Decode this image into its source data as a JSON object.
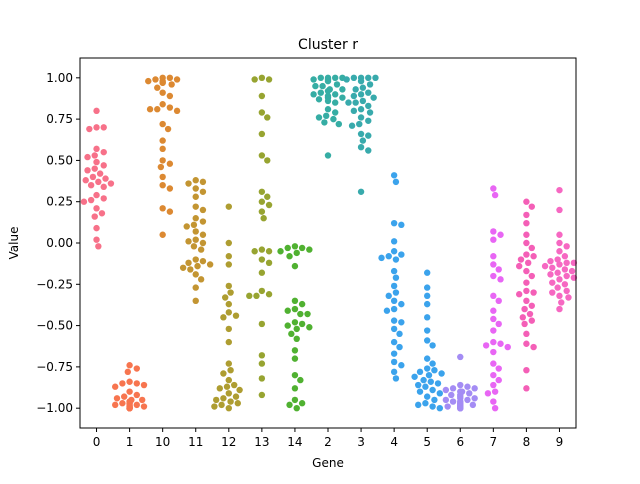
{
  "chart_data": {
    "type": "scatter",
    "subtype": "swarm",
    "title": "Cluster r",
    "xlabel": "Gene",
    "ylabel": "Value",
    "ylim": [
      -1.12,
      1.12
    ],
    "yticks": [
      -1.0,
      -0.75,
      -0.5,
      -0.25,
      0.0,
      0.25,
      0.5,
      0.75,
      1.0
    ],
    "yticklabels": [
      "−1.00",
      "−0.75",
      "−0.50",
      "−0.25",
      "0.00",
      "0.25",
      "0.50",
      "0.75",
      "1.00"
    ],
    "categories": [
      "0",
      "1",
      "10",
      "11",
      "12",
      "13",
      "14",
      "2",
      "3",
      "4",
      "5",
      "6",
      "7",
      "8",
      "9"
    ],
    "colors": [
      "#f77189",
      "#f7754f",
      "#dc8932",
      "#c39532",
      "#ae9d31",
      "#97a431",
      "#50b131",
      "#36ada4",
      "#38aaac",
      "#3ba3ec",
      "#3ba3ec",
      "#a48cf4",
      "#e866f4",
      "#f45fb7",
      "#f668c2"
    ],
    "series": [
      {
        "category": "0",
        "values": [
          0.8,
          0.7,
          0.7,
          0.69,
          0.57,
          0.55,
          0.53,
          0.52,
          0.49,
          0.47,
          0.45,
          0.44,
          0.42,
          0.4,
          0.39,
          0.38,
          0.37,
          0.36,
          0.35,
          0.34,
          0.29,
          0.27,
          0.26,
          0.25,
          0.21,
          0.18,
          0.16,
          0.09,
          0.02,
          -0.02
        ]
      },
      {
        "category": "1",
        "values": [
          -0.74,
          -0.76,
          -0.78,
          -0.84,
          -0.85,
          -0.85,
          -0.86,
          -0.87,
          -0.9,
          -0.92,
          -0.93,
          -0.94,
          -0.95,
          -0.95,
          -0.96,
          -0.97,
          -0.97,
          -0.98,
          -0.98,
          -0.99,
          -0.99,
          -1.0,
          -1.0,
          -1.0,
          -1.0,
          -1.0,
          -1.0,
          -0.99,
          -0.98,
          -0.97
        ]
      },
      {
        "category": "10",
        "values": [
          1.0,
          1.0,
          0.99,
          0.99,
          0.98,
          0.97,
          0.96,
          0.94,
          0.91,
          0.89,
          0.84,
          0.82,
          0.81,
          0.81,
          0.8,
          0.72,
          0.69,
          0.62,
          0.57,
          0.5,
          0.48,
          0.46,
          0.4,
          0.35,
          0.33,
          0.21,
          0.19,
          0.05,
          0.98,
          0.97
        ]
      },
      {
        "category": "11",
        "values": [
          0.38,
          0.37,
          0.36,
          0.33,
          0.31,
          0.28,
          0.22,
          0.2,
          0.15,
          0.13,
          0.11,
          0.1,
          0.07,
          0.05,
          0.02,
          0.0,
          -0.02,
          -0.04,
          -0.1,
          -0.12,
          -0.13,
          -0.14,
          -0.15,
          -0.16,
          -0.19,
          -0.22,
          -0.27,
          -0.35,
          0.01,
          -0.11
        ]
      },
      {
        "category": "12",
        "values": [
          0.22,
          0.0,
          -0.08,
          -0.13,
          -0.26,
          -0.3,
          -0.33,
          -0.37,
          -0.42,
          -0.44,
          -0.45,
          -0.52,
          -0.6,
          -0.73,
          -0.77,
          -0.79,
          -0.83,
          -0.86,
          -0.88,
          -0.89,
          -0.91,
          -0.93,
          -0.95,
          -0.96,
          -0.97,
          -0.98,
          -0.99,
          -1.0,
          -0.87,
          -0.94
        ]
      },
      {
        "category": "13",
        "values": [
          1.0,
          0.99,
          0.99,
          0.89,
          0.79,
          0.76,
          0.66,
          0.53,
          0.5,
          0.31,
          0.28,
          0.25,
          0.23,
          0.19,
          0.15,
          -0.04,
          -0.05,
          -0.1,
          -0.12,
          -0.18,
          -0.29,
          -0.31,
          -0.32,
          -0.32,
          -0.49,
          -0.68,
          -0.73,
          -0.82,
          -0.92,
          -0.05
        ]
      },
      {
        "category": "14",
        "values": [
          -0.02,
          -0.03,
          -0.03,
          -0.04,
          -0.05,
          -0.08,
          -0.14,
          -0.35,
          -0.37,
          -0.4,
          -0.41,
          -0.43,
          -0.48,
          -0.49,
          -0.51,
          -0.52,
          -0.55,
          -0.58,
          -0.65,
          -0.7,
          -0.8,
          -0.83,
          -0.88,
          -0.95,
          -0.97,
          -0.98,
          -1.0,
          -0.06,
          -0.43,
          -0.5
        ]
      },
      {
        "category": "2",
        "values": [
          1.0,
          1.0,
          1.0,
          1.0,
          0.99,
          0.98,
          0.96,
          0.95,
          0.93,
          0.92,
          0.91,
          0.9,
          0.89,
          0.88,
          0.87,
          0.86,
          0.85,
          0.81,
          0.79,
          0.77,
          0.76,
          0.75,
          0.73,
          0.72,
          0.53,
          0.9,
          0.93,
          0.99,
          0.95,
          0.88
        ]
      },
      {
        "category": "3",
        "values": [
          1.0,
          1.0,
          1.0,
          1.0,
          0.99,
          0.96,
          0.93,
          0.91,
          0.89,
          0.88,
          0.86,
          0.85,
          0.83,
          0.81,
          0.79,
          0.76,
          0.74,
          0.72,
          0.71,
          0.65,
          0.62,
          0.58,
          0.56,
          0.31,
          0.9,
          0.94,
          0.98,
          0.85,
          0.8,
          0.66
        ]
      },
      {
        "category": "4",
        "values": [
          0.41,
          0.37,
          0.12,
          0.11,
          0.01,
          -0.05,
          -0.07,
          -0.08,
          -0.09,
          -0.1,
          -0.17,
          -0.21,
          -0.26,
          -0.32,
          -0.35,
          -0.37,
          -0.4,
          -0.41,
          -0.48,
          -0.52,
          -0.55,
          -0.6,
          -0.63,
          -0.67,
          -0.72,
          -0.74,
          -0.78,
          -0.82,
          -0.3,
          -0.47
        ]
      },
      {
        "category": "5",
        "values": [
          -0.18,
          -0.27,
          -0.32,
          -0.37,
          -0.45,
          -0.53,
          -0.59,
          -0.62,
          -0.7,
          -0.73,
          -0.76,
          -0.77,
          -0.78,
          -0.79,
          -0.8,
          -0.81,
          -0.83,
          -0.85,
          -0.86,
          -0.87,
          -0.89,
          -0.9,
          -0.91,
          -0.93,
          -0.95,
          -0.97,
          -0.98,
          -0.99,
          -1.0,
          -0.84
        ]
      },
      {
        "category": "6",
        "values": [
          -0.69,
          -0.86,
          -0.87,
          -0.88,
          -0.88,
          -0.89,
          -0.9,
          -0.91,
          -0.92,
          -0.92,
          -0.93,
          -0.94,
          -0.95,
          -0.95,
          -0.96,
          -0.96,
          -0.97,
          -0.97,
          -0.98,
          -0.98,
          -0.98,
          -0.99,
          -0.99,
          -0.99,
          -1.0,
          -1.0,
          -1.0,
          -1.0,
          -0.94,
          -0.9
        ]
      },
      {
        "category": "7",
        "values": [
          0.33,
          0.29,
          0.07,
          0.05,
          -0.08,
          -0.13,
          -0.16,
          -0.2,
          -0.22,
          -0.32,
          -0.35,
          -0.41,
          -0.46,
          -0.49,
          -0.53,
          -0.6,
          -0.61,
          -0.62,
          -0.63,
          -0.66,
          -0.73,
          -0.76,
          -0.8,
          -0.83,
          -0.86,
          -0.9,
          -0.91,
          -0.96,
          -1.0,
          0.02
        ]
      },
      {
        "category": "8",
        "values": [
          0.25,
          0.22,
          0.17,
          0.12,
          0.05,
          0.0,
          -0.03,
          -0.08,
          -0.1,
          -0.12,
          -0.14,
          -0.17,
          -0.2,
          -0.24,
          -0.29,
          -0.3,
          -0.31,
          -0.35,
          -0.4,
          -0.43,
          -0.45,
          -0.47,
          -0.49,
          -0.55,
          -0.61,
          -0.63,
          -0.77,
          -0.88,
          -0.07,
          -0.38
        ]
      },
      {
        "category": "9",
        "values": [
          0.32,
          0.2,
          0.05,
          0.0,
          -0.02,
          -0.05,
          -0.08,
          -0.1,
          -0.11,
          -0.12,
          -0.13,
          -0.14,
          -0.15,
          -0.16,
          -0.17,
          -0.18,
          -0.2,
          -0.22,
          -0.24,
          -0.25,
          -0.27,
          -0.29,
          -0.3,
          -0.32,
          -0.33,
          -0.36,
          -0.4,
          -0.12,
          -0.19,
          -0.21
        ]
      }
    ]
  }
}
